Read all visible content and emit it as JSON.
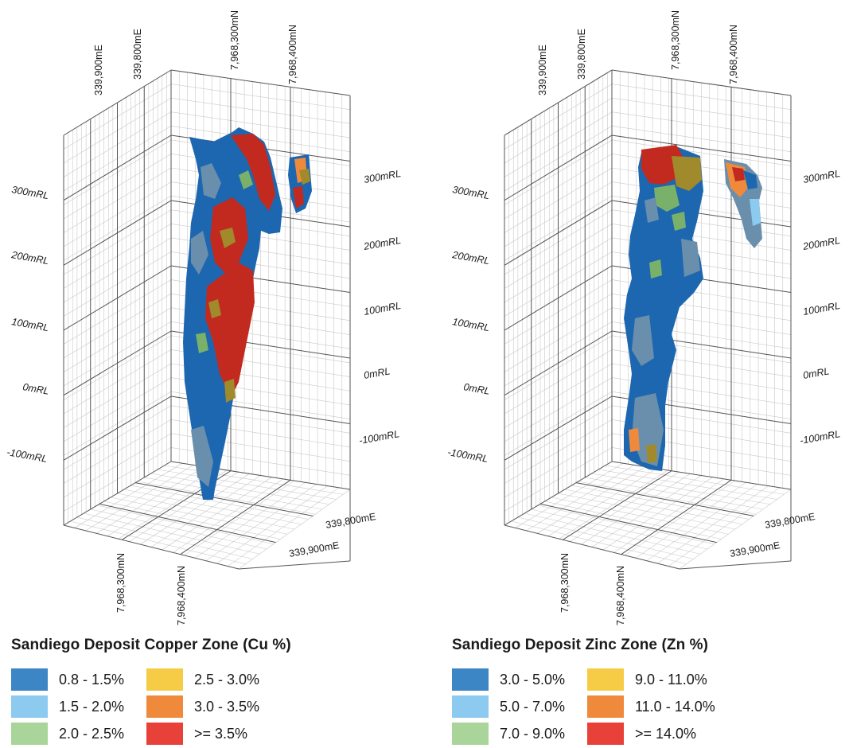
{
  "colors": {
    "c1": "#3d86c6",
    "c2": "#8ccaf0",
    "c3": "#a9d59a",
    "c4": "#f6cb45",
    "c5": "#ef8a3c",
    "c6": "#e7413a",
    "body_blue": "#1d67b0",
    "body_slate": "#6a8fad",
    "body_red": "#c22a1f",
    "body_olive": "#a08a2c",
    "body_green": "#7ab16a"
  },
  "panels": [
    {
      "title": "Sandiego Deposit Copper Zone (Cu %)",
      "axes": {
        "top_easting": [
          "339,900mE",
          "339,800mE"
        ],
        "top_northing": [
          "7,968,300mN",
          "7,968,400mN"
        ],
        "left_rl": [
          "300mRL",
          "200mRL",
          "100mRL",
          "0mRL",
          "-100mRL"
        ],
        "right_rl": [
          "300mRL",
          "200mRL",
          "100mRL",
          "0mRL",
          "-100mRL"
        ],
        "bottom_easting": [
          "339,800mE",
          "339,900mE"
        ],
        "bottom_northing": [
          "7,968,300mN",
          "7,968,400mN"
        ]
      },
      "legend": [
        {
          "label": "0.8 - 1.5%",
          "color": "#3d86c6"
        },
        {
          "label": "1.5 - 2.0%",
          "color": "#8ccaf0"
        },
        {
          "label": "2.0 - 2.5%",
          "color": "#a9d59a"
        },
        {
          "label": "2.5 - 3.0%",
          "color": "#f6cb45"
        },
        {
          "label": "3.0 - 3.5%",
          "color": "#ef8a3c"
        },
        {
          "label": ">= 3.5%",
          "color": "#e7413a"
        }
      ]
    },
    {
      "title": "Sandiego Deposit Zinc Zone (Zn %)",
      "axes": {
        "top_easting": [
          "339,900mE",
          "339,800mE"
        ],
        "top_northing": [
          "7,968,300mN",
          "7,968,400mN"
        ],
        "left_rl": [
          "300mRL",
          "200mRL",
          "100mRL",
          "0mRL",
          "-100mRL"
        ],
        "right_rl": [
          "300mRL",
          "200mRL",
          "100mRL",
          "0mRL",
          "-100mRL"
        ],
        "bottom_easting": [
          "339,800mE",
          "339,900mE"
        ],
        "bottom_northing": [
          "7,968,300mN",
          "7,968,400mN"
        ]
      },
      "legend": [
        {
          "label": "3.0 - 5.0%",
          "color": "#3d86c6"
        },
        {
          "label": "5.0 - 7.0%",
          "color": "#8ccaf0"
        },
        {
          "label": "7.0 - 9.0%",
          "color": "#a9d59a"
        },
        {
          "label": "9.0 - 11.0%",
          "color": "#f6cb45"
        },
        {
          "label": "11.0 - 14.0%",
          "color": "#ef8a3c"
        },
        {
          "label": ">= 14.0%",
          "color": "#e7413a"
        }
      ]
    }
  ]
}
